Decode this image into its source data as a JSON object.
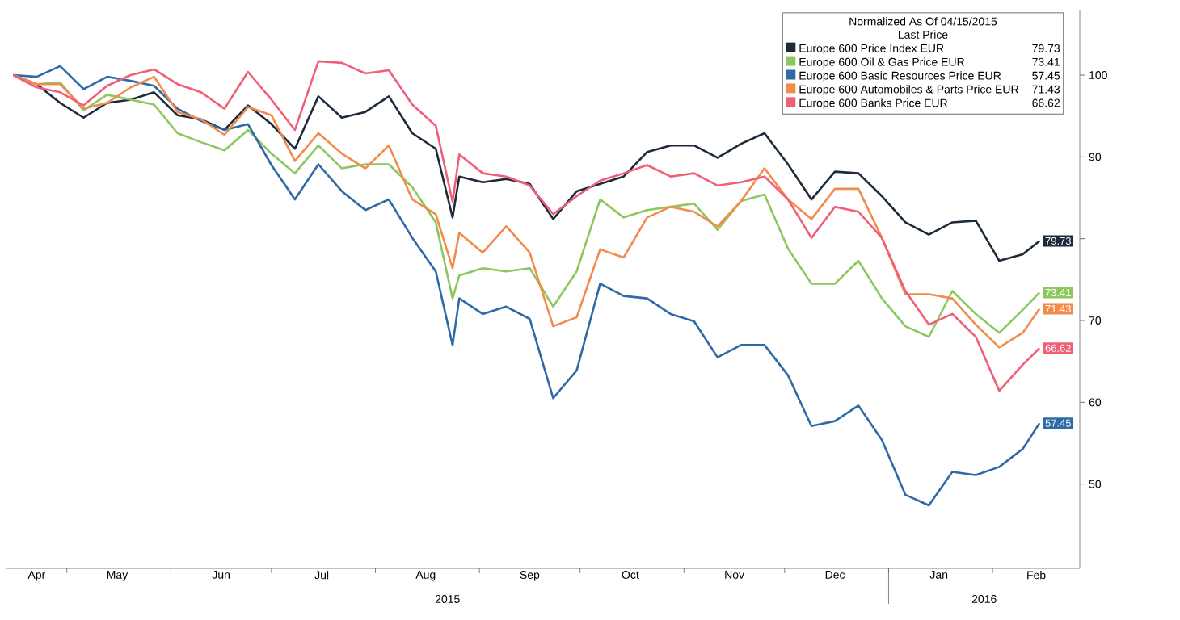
{
  "chart_data": {
    "type": "line",
    "legend_title": "Normalized As Of 04/15/2015",
    "legend": "top right",
    "annotations": [
      "Last Price",
      "2015",
      "2016"
    ],
    "xlim": [
      "2015-04-13",
      "2016-02-27"
    ],
    "xticks": [
      {
        "value": "2015-04-22",
        "label": "Apr"
      },
      {
        "value": "2015-05-01",
        "label": null
      },
      {
        "value": "2015-05-16",
        "label": "May"
      },
      {
        "value": "2015-06-01",
        "label": null
      },
      {
        "value": "2015-06-16",
        "label": "Jun"
      },
      {
        "value": "2015-07-01",
        "label": null
      },
      {
        "value": "2015-07-16",
        "label": "Jul"
      },
      {
        "value": "2015-08-01",
        "label": null
      },
      {
        "value": "2015-08-16",
        "label": "Aug"
      },
      {
        "value": "2015-09-01",
        "label": null
      },
      {
        "value": "2015-09-16",
        "label": "Sep"
      },
      {
        "value": "2015-10-01",
        "label": null
      },
      {
        "value": "2015-10-16",
        "label": "Oct"
      },
      {
        "value": "2015-11-01",
        "label": null
      },
      {
        "value": "2015-11-16",
        "label": "Nov"
      },
      {
        "value": "2015-12-01",
        "label": null
      },
      {
        "value": "2015-12-16",
        "label": "Dec"
      },
      {
        "value": "2016-01-01",
        "label": null
      },
      {
        "value": "2016-01-16",
        "label": "Jan"
      },
      {
        "value": "2016-02-01",
        "label": null
      },
      {
        "value": "2016-02-14",
        "label": "Feb"
      }
    ],
    "ylim": [
      39.7,
      108
    ],
    "yticks": [
      50,
      60,
      70,
      {
        "value": 80,
        "label": null
      },
      90,
      100
    ],
    "x": [
      "2015-04-15",
      "2015-04-22",
      "2015-04-29",
      "2015-05-06",
      "2015-05-13",
      "2015-05-20",
      "2015-05-27",
      "2015-06-03",
      "2015-06-10",
      "2015-06-17",
      "2015-06-24",
      "2015-07-01",
      "2015-07-08",
      "2015-07-15",
      "2015-07-22",
      "2015-07-29",
      "2015-08-05",
      "2015-08-12",
      "2015-08-19",
      "2015-08-24",
      "2015-08-26",
      "2015-09-02",
      "2015-09-09",
      "2015-09-16",
      "2015-09-23",
      "2015-09-30",
      "2015-10-07",
      "2015-10-14",
      "2015-10-21",
      "2015-10-28",
      "2015-11-04",
      "2015-11-11",
      "2015-11-18",
      "2015-11-25",
      "2015-12-02",
      "2015-12-09",
      "2015-12-16",
      "2015-12-23",
      "2015-12-30",
      "2016-01-06",
      "2016-01-13",
      "2016-01-20",
      "2016-01-27",
      "2016-02-03",
      "2016-02-10",
      "2016-02-15"
    ],
    "series": [
      {
        "name": "Europe 600 Price Index EUR",
        "color": "#1c2a3a",
        "values": [
          100,
          98.9,
          96.6,
          94.8,
          96.6,
          97.0,
          97.9,
          95.1,
          94.6,
          93.3,
          96.3,
          94.0,
          91.0,
          97.4,
          94.8,
          95.5,
          97.4,
          92.9,
          91.0,
          82.6,
          87.6,
          86.9,
          87.3,
          86.7,
          82.4,
          85.8,
          86.7,
          87.6,
          90.6,
          91.4,
          91.4,
          89.9,
          91.6,
          92.9,
          89.1,
          84.8,
          88.2,
          88.0,
          85.2,
          82.0,
          80.5,
          82.0,
          82.2,
          77.3,
          78.1,
          79.73
        ],
        "value_labels": [
          null,
          null,
          null,
          null,
          null,
          null,
          null,
          null,
          null,
          null,
          null,
          null,
          null,
          null,
          null,
          null,
          null,
          null,
          null,
          null,
          null,
          null,
          null,
          null,
          null,
          null,
          null,
          null,
          null,
          null,
          null,
          null,
          null,
          null,
          null,
          null,
          null,
          null,
          null,
          null,
          null,
          null,
          null,
          null,
          null,
          "79.73"
        ]
      },
      {
        "name": "Europe 600 Oil & Gas Price EUR",
        "color": "#8dc85e",
        "values": [
          100,
          98.9,
          99.1,
          95.7,
          97.6,
          97.0,
          96.4,
          92.9,
          91.8,
          90.8,
          93.3,
          90.4,
          88.0,
          91.4,
          88.6,
          89.1,
          89.1,
          86.3,
          82.0,
          72.7,
          75.5,
          76.4,
          76.0,
          76.4,
          71.7,
          76.0,
          84.8,
          82.6,
          83.5,
          83.9,
          84.3,
          81.1,
          84.6,
          85.4,
          78.8,
          74.5,
          74.5,
          77.3,
          72.7,
          69.3,
          68.0,
          73.6,
          70.8,
          68.5,
          71.3,
          73.41
        ],
        "value_labels": [
          null,
          null,
          null,
          null,
          null,
          null,
          null,
          null,
          null,
          null,
          null,
          null,
          null,
          null,
          null,
          null,
          null,
          null,
          null,
          null,
          null,
          null,
          null,
          null,
          null,
          null,
          null,
          null,
          null,
          null,
          null,
          null,
          null,
          null,
          null,
          null,
          null,
          null,
          null,
          null,
          null,
          null,
          null,
          null,
          null,
          "73.41"
        ]
      },
      {
        "name": "Europe 600 Basic Resources Price EUR",
        "color": "#2e6aa6",
        "values": [
          100,
          99.8,
          101.1,
          98.3,
          99.8,
          99.3,
          98.7,
          95.9,
          94.4,
          93.3,
          94.0,
          89.0,
          84.8,
          89.1,
          85.8,
          83.5,
          84.8,
          80.1,
          76.0,
          67.0,
          72.7,
          70.8,
          71.7,
          70.2,
          60.5,
          63.9,
          74.5,
          73.0,
          72.7,
          70.8,
          69.9,
          65.5,
          67.0,
          67.0,
          63.3,
          57.1,
          57.7,
          59.6,
          55.4,
          48.7,
          47.4,
          51.5,
          51.1,
          52.1,
          54.3,
          57.45
        ],
        "value_labels": [
          null,
          null,
          null,
          null,
          null,
          null,
          null,
          null,
          null,
          null,
          null,
          null,
          null,
          null,
          null,
          null,
          null,
          null,
          null,
          null,
          null,
          null,
          null,
          null,
          null,
          null,
          null,
          null,
          null,
          null,
          null,
          null,
          null,
          null,
          null,
          null,
          null,
          null,
          null,
          null,
          null,
          null,
          null,
          null,
          null,
          "57.45"
        ]
      },
      {
        "name": "Europe 600 Automobiles & Parts Price EUR",
        "color": "#f28b4b",
        "values": [
          100,
          98.9,
          98.9,
          95.9,
          96.6,
          98.5,
          99.8,
          95.5,
          94.6,
          92.7,
          96.1,
          95.1,
          89.5,
          92.9,
          90.4,
          88.6,
          91.4,
          84.8,
          83.0,
          76.4,
          80.7,
          78.3,
          81.5,
          78.3,
          69.3,
          70.4,
          78.7,
          77.7,
          82.6,
          83.9,
          83.3,
          81.5,
          84.6,
          88.6,
          84.8,
          82.4,
          86.1,
          86.1,
          80.1,
          73.2,
          73.2,
          72.7,
          69.5,
          66.7,
          68.5,
          71.43
        ],
        "value_labels": [
          null,
          null,
          null,
          null,
          null,
          null,
          null,
          null,
          null,
          null,
          null,
          null,
          null,
          null,
          null,
          null,
          null,
          null,
          null,
          null,
          null,
          null,
          null,
          null,
          null,
          null,
          null,
          null,
          null,
          null,
          null,
          null,
          null,
          null,
          null,
          null,
          null,
          null,
          null,
          null,
          null,
          null,
          null,
          null,
          null,
          "71.43"
        ]
      },
      {
        "name": "Europe 600 Banks Price EUR",
        "color": "#ef5f78",
        "values": [
          100,
          98.5,
          97.9,
          96.3,
          98.7,
          100.0,
          100.7,
          98.9,
          97.9,
          95.9,
          100.4,
          97.0,
          93.3,
          101.7,
          101.5,
          100.2,
          100.6,
          96.4,
          93.8,
          84.5,
          90.3,
          88.0,
          87.6,
          86.5,
          83.0,
          85.2,
          87.1,
          88.0,
          89.0,
          87.6,
          88.0,
          86.5,
          86.9,
          87.6,
          84.8,
          80.1,
          83.9,
          83.3,
          80.1,
          73.6,
          69.5,
          70.8,
          68.0,
          61.4,
          64.6,
          66.62
        ],
        "value_labels": [
          null,
          null,
          null,
          null,
          null,
          null,
          null,
          null,
          null,
          null,
          null,
          null,
          null,
          null,
          null,
          null,
          null,
          null,
          null,
          null,
          null,
          null,
          null,
          null,
          null,
          null,
          null,
          null,
          null,
          null,
          null,
          null,
          null,
          null,
          null,
          null,
          null,
          null,
          null,
          null,
          null,
          null,
          null,
          null,
          null,
          "66.62"
        ]
      }
    ]
  }
}
